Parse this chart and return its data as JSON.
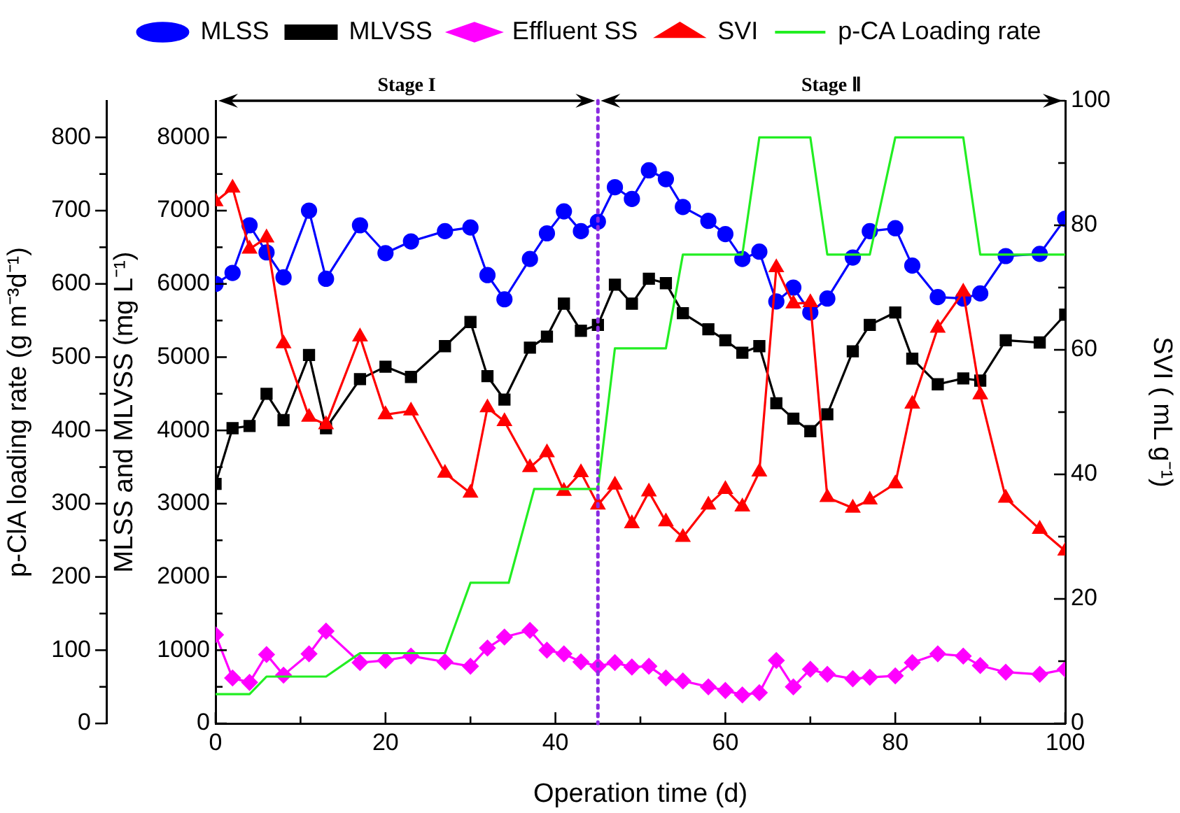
{
  "chart_data": {
    "type": "line",
    "xlabel": "Operation time (d)",
    "ylabel": "MLSS and MLVSS (mg L⁻¹)",
    "y2label": "SVI ( mL g⁻¹)",
    "y3label": "p-ClA loading rate (g m⁻³d⁻¹)",
    "x": [
      0,
      2,
      4,
      6,
      8,
      11,
      13,
      17,
      20,
      23,
      27,
      30,
      32,
      34,
      37,
      39,
      41,
      43,
      45,
      47,
      49,
      51,
      53,
      55,
      58,
      60,
      62,
      64,
      66,
      68,
      70,
      72,
      75,
      77,
      80,
      82,
      85,
      88,
      90,
      93,
      97,
      100
    ],
    "series": [
      {
        "name": "MLSS",
        "color": "#0000ff",
        "marker": "circle",
        "values": [
          6000,
          6150,
          6800,
          6430,
          6090,
          7000,
          6070,
          6800,
          6420,
          6580,
          6720,
          6770,
          6120,
          5790,
          6340,
          6690,
          6990,
          6720,
          6850,
          7320,
          7160,
          7550,
          7430,
          7050,
          6860,
          6680,
          6340,
          6440,
          5760,
          5950,
          5610,
          5800,
          6360,
          6720,
          6760,
          6250,
          5820,
          5800,
          5870,
          6380,
          6410,
          6890
        ]
      },
      {
        "name": "MLVSS",
        "color": "#000000",
        "marker": "square",
        "values": [
          3270,
          4030,
          4060,
          4500,
          4140,
          5030,
          4030,
          4700,
          4870,
          4730,
          5150,
          5480,
          4740,
          4420,
          5130,
          5280,
          5730,
          5360,
          5440,
          5990,
          5730,
          6070,
          6010,
          5600,
          5380,
          5230,
          5060,
          5150,
          4370,
          4160,
          3990,
          4220,
          5080,
          5440,
          5610,
          4980,
          4630,
          4710,
          4680,
          5230,
          5200,
          5580
        ]
      },
      {
        "name": "Effluent SS",
        "color": "#ff00ff",
        "marker": "diamond",
        "values": [
          1210,
          620,
          560,
          940,
          660,
          950,
          1260,
          830,
          860,
          920,
          840,
          780,
          1030,
          1180,
          1270,
          1000,
          950,
          840,
          780,
          830,
          770,
          780,
          620,
          580,
          500,
          450,
          390,
          420,
          860,
          500,
          740,
          670,
          610,
          630,
          650,
          830,
          950,
          920,
          790,
          700,
          670,
          740
        ]
      },
      {
        "name": "SVI",
        "color": "#ff0000",
        "marker": "triangle",
        "axis": "y2",
        "values": [
          83.8,
          86.0,
          76.2,
          78.0,
          61.0,
          49.2,
          48.0,
          62.1,
          49.6,
          50.2,
          40.2,
          37.0,
          50.7,
          48.5,
          41.1,
          43.5,
          37.3,
          40.3,
          35.1,
          38.3,
          32.1,
          37.2,
          32.4,
          29.9,
          35.1,
          37.6,
          34.8,
          40.4,
          73.2,
          67.4,
          67.6,
          36.3,
          34.6,
          35.9,
          38.5,
          51.3,
          63.5,
          69.3,
          52.8,
          36.2,
          31.2,
          27.7
        ]
      },
      {
        "name": "p-CA Loading rate",
        "color": "#22ee22",
        "marker": "none",
        "axis": "y3",
        "x": [
          0,
          4,
          6,
          13,
          17,
          27,
          30,
          34.5,
          37.5,
          45,
          47,
          53,
          55,
          62,
          64,
          70,
          72,
          77,
          80,
          88,
          90,
          100
        ],
        "values": [
          40,
          40,
          64,
          64,
          96,
          96,
          192,
          192,
          320,
          320,
          512,
          512,
          640,
          640,
          800,
          800,
          640,
          640,
          800,
          800,
          640,
          640
        ]
      }
    ],
    "xlim": [
      0,
      100
    ],
    "xticks": [
      0,
      {
        "value": 10,
        "label": null
      },
      20,
      {
        "value": 30,
        "label": null
      },
      40,
      {
        "value": 50,
        "label": null
      },
      60,
      {
        "value": 70,
        "label": null
      },
      80,
      {
        "value": 90,
        "label": null
      },
      100
    ],
    "ylim": [
      0,
      8500
    ],
    "yticks": [
      0,
      {
        "value": 500,
        "label": null
      },
      1000,
      {
        "value": 1500,
        "label": null
      },
      2000,
      {
        "value": 2500,
        "label": null
      },
      3000,
      {
        "value": 3500,
        "label": null
      },
      4000,
      {
        "value": 4500,
        "label": null
      },
      5000,
      {
        "value": 5500,
        "label": null
      },
      6000,
      {
        "value": 6500,
        "label": null
      },
      7000,
      {
        "value": 7500,
        "label": null
      },
      8000
    ],
    "y2lim": [
      0,
      100
    ],
    "y2ticks": [
      0,
      {
        "value": 10,
        "label": null
      },
      20,
      {
        "value": 30,
        "label": null
      },
      40,
      {
        "value": 50,
        "label": null
      },
      60,
      {
        "value": 70,
        "label": null
      },
      80,
      {
        "value": 90,
        "label": null
      },
      100
    ],
    "y3lim": [
      0,
      850
    ],
    "y3ticks": [
      0,
      {
        "value": 50,
        "label": null
      },
      100,
      {
        "value": 150,
        "label": null
      },
      200,
      {
        "value": 250,
        "label": null
      },
      300,
      {
        "value": 350,
        "label": null
      },
      400,
      {
        "value": 450,
        "label": null
      },
      500,
      {
        "value": 550,
        "label": null
      },
      600,
      {
        "value": 650,
        "label": null
      },
      700,
      {
        "value": 750,
        "label": null
      },
      800
    ],
    "ref_lines": [
      {
        "axis": "x",
        "value": 45,
        "color": "#8a2be2",
        "line_style": "dotted"
      }
    ],
    "annotations": [
      "Stage I",
      "Stage Ⅱ"
    ],
    "legend": "top"
  }
}
